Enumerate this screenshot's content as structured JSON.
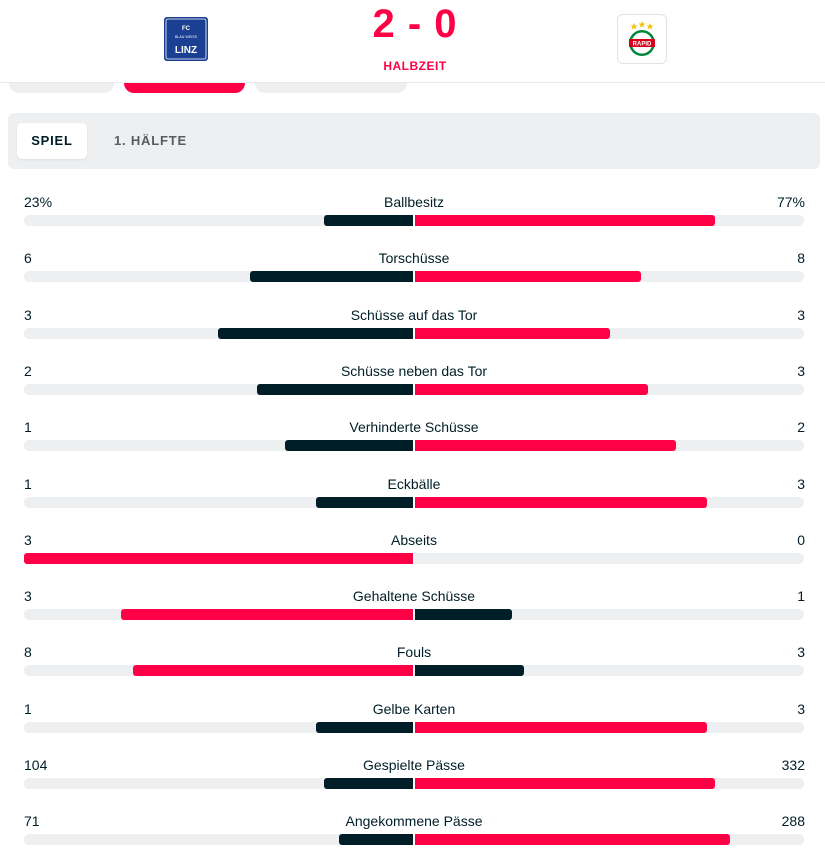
{
  "colors": {
    "accent": "#ff0046",
    "dark": "#001e28",
    "track": "#eeeff0"
  },
  "header": {
    "home_logo": {
      "icon": "fc-blau-weiss-linz-crest-icon",
      "text": "FC BLAU WEISS LINZ"
    },
    "away_logo": {
      "icon": "rapid-wien-crest-icon",
      "text": "RAPID"
    },
    "score": "2 - 0",
    "status": "HALBZEIT"
  },
  "tabs": [
    {
      "label": "SPIEL",
      "active": true
    },
    {
      "label": "1. HÄLFTE",
      "active": false
    }
  ],
  "stats": [
    {
      "label": "Ballbesitz",
      "home": "23%",
      "away": "77%",
      "home_share": 0.23,
      "away_share": 0.77,
      "leader": "away"
    },
    {
      "label": "Torschüsse",
      "home": "6",
      "away": "8",
      "home_share": 0.42,
      "away_share": 0.58,
      "leader": "away"
    },
    {
      "label": "Schüsse auf das Tor",
      "home": "3",
      "away": "3",
      "home_share": 0.5,
      "away_share": 0.5,
      "leader": "none"
    },
    {
      "label": "Schüsse neben das Tor",
      "home": "2",
      "away": "3",
      "home_share": 0.4,
      "away_share": 0.6,
      "leader": "away"
    },
    {
      "label": "Verhinderte Schüsse",
      "home": "1",
      "away": "2",
      "home_share": 0.33,
      "away_share": 0.67,
      "leader": "away"
    },
    {
      "label": "Eckbälle",
      "home": "1",
      "away": "3",
      "home_share": 0.25,
      "away_share": 0.75,
      "leader": "away"
    },
    {
      "label": "Abseits",
      "home": "3",
      "away": "0",
      "home_share": 1.0,
      "away_share": 0.0,
      "leader": "home"
    },
    {
      "label": "Gehaltene Schüsse",
      "home": "3",
      "away": "1",
      "home_share": 0.75,
      "away_share": 0.25,
      "leader": "home"
    },
    {
      "label": "Fouls",
      "home": "8",
      "away": "3",
      "home_share": 0.72,
      "away_share": 0.28,
      "leader": "home"
    },
    {
      "label": "Gelbe Karten",
      "home": "1",
      "away": "3",
      "home_share": 0.25,
      "away_share": 0.75,
      "leader": "away"
    },
    {
      "label": "Gespielte Pässe",
      "home": "104",
      "away": "332",
      "home_share": 0.23,
      "away_share": 0.77,
      "leader": "away"
    },
    {
      "label": "Angekommene Pässe",
      "home": "71",
      "away": "288",
      "home_share": 0.19,
      "away_share": 0.81,
      "leader": "away"
    }
  ]
}
